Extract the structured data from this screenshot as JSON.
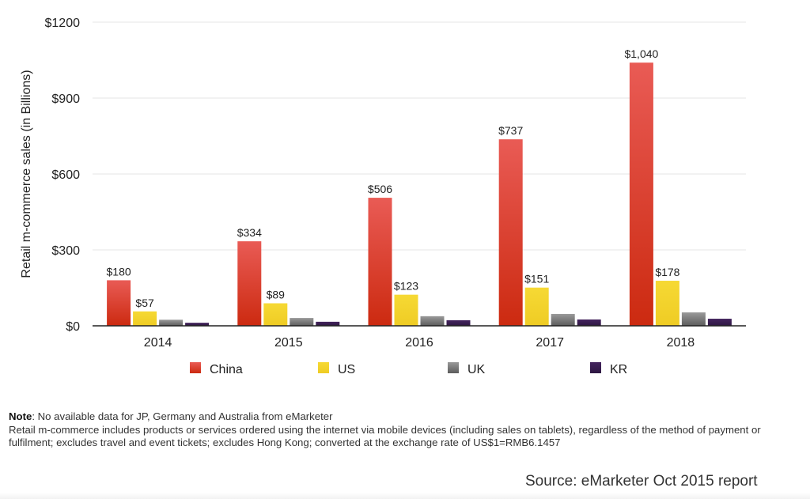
{
  "chart_data": {
    "type": "bar",
    "title": "",
    "xlabel": "",
    "ylabel": "Retail m-commerce sales (in Billions)",
    "ylim": [
      0,
      1200
    ],
    "yticks": [
      0,
      300,
      600,
      900,
      1200
    ],
    "ytick_labels": [
      "$0",
      "$300",
      "$600",
      "$900",
      "$1200"
    ],
    "grid": true,
    "legend_position": "bottom",
    "categories": [
      "2014",
      "2015",
      "2016",
      "2017",
      "2018"
    ],
    "series": [
      {
        "name": "China",
        "color": "#d93a2b",
        "values": [
          180,
          334,
          506,
          737,
          1040
        ],
        "labels": [
          "$180",
          "$334",
          "$506",
          "$737",
          "$1,040"
        ]
      },
      {
        "name": "US",
        "color": "#f2d12e",
        "values": [
          57,
          89,
          123,
          151,
          178
        ],
        "labels": [
          "$57",
          "$89",
          "$123",
          "$151",
          "$178"
        ]
      },
      {
        "name": "UK",
        "color": "#7a7a7a",
        "values": [
          24,
          31,
          38,
          47,
          53
        ],
        "labels": [
          "",
          "",
          "",
          "",
          ""
        ]
      },
      {
        "name": "KR",
        "color": "#3b1f52",
        "values": [
          12,
          16,
          22,
          25,
          28
        ],
        "labels": [
          "",
          "",
          "",
          "",
          ""
        ]
      }
    ]
  },
  "notes": {
    "note_label": "Note",
    "note_text": ": No available data for JP, Germany and Australia from eMarketer",
    "definition": "Retail m-commerce includes products or services ordered using the internet via mobile devices (including sales on tablets), regardless of the method of payment or fulfilment; excludes travel and event tickets; excludes Hong Kong; converted at the exchange rate of US$1=RMB6.1457"
  },
  "source": "Source: eMarketer Oct 2015 report"
}
